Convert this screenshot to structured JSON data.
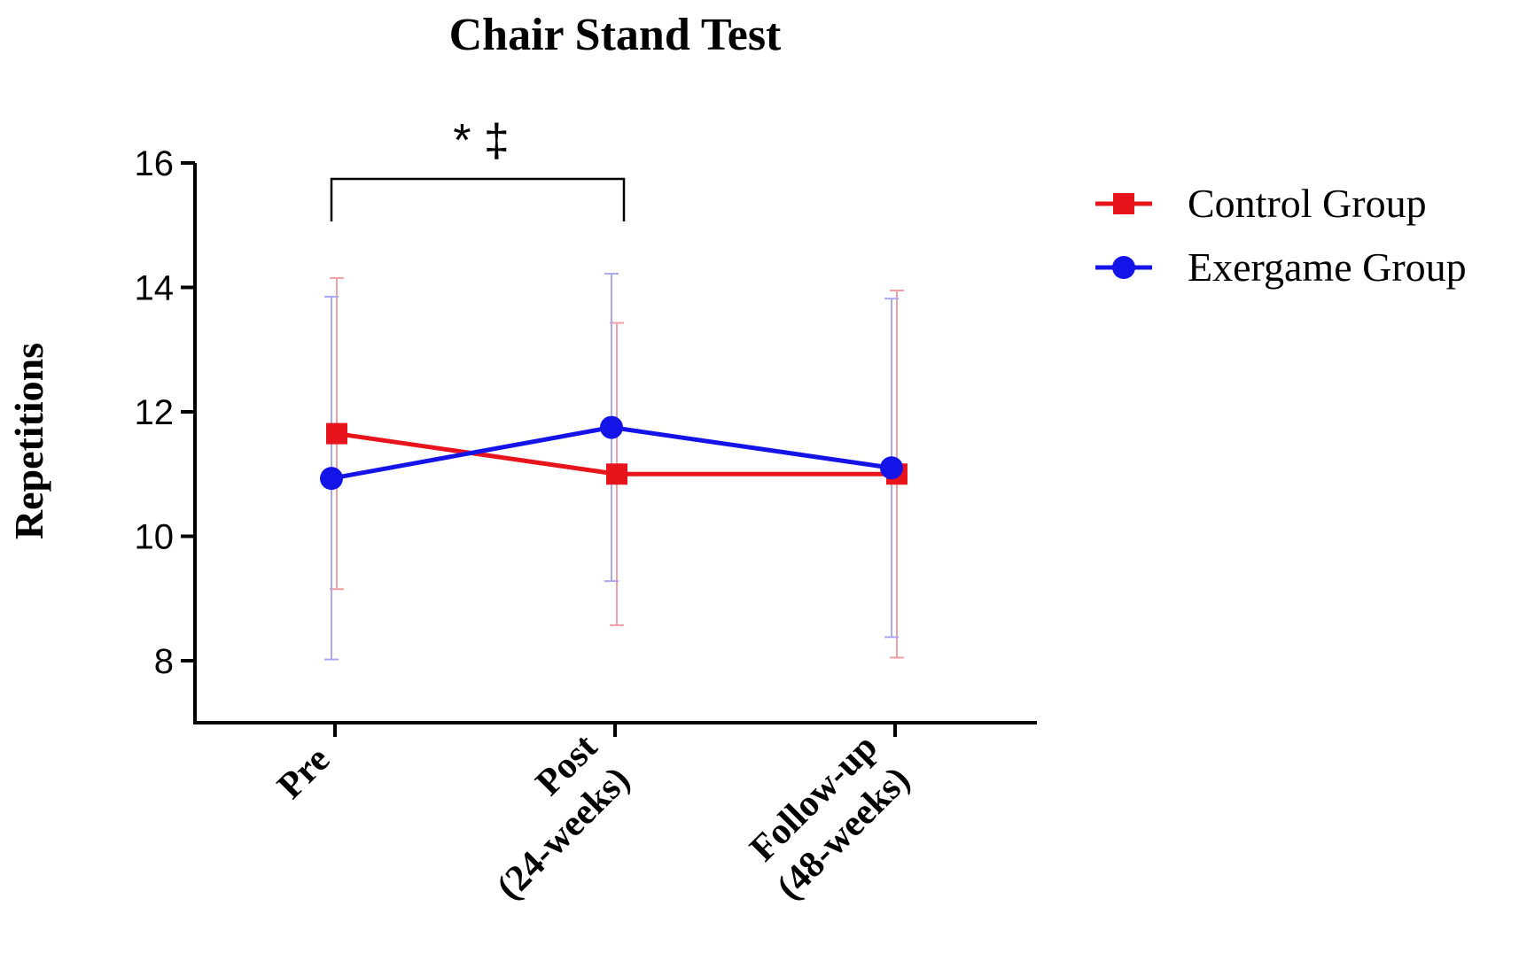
{
  "chart_data": {
    "type": "line",
    "title": "Chair Stand Test",
    "ylabel": "Repetitions",
    "xlabel": "",
    "ylim": [
      7,
      16
    ],
    "yticks": [
      8,
      10,
      12,
      14,
      16
    ],
    "categories": [
      [
        "Pre"
      ],
      [
        "Post",
        "(24-weeks)"
      ],
      [
        "Follow-up",
        "(48-weeks)"
      ]
    ],
    "legend_position": "top-right",
    "grid": false,
    "series": [
      {
        "name": "Control Group",
        "color": "#e8141b",
        "marker": "square",
        "values": [
          11.65,
          11.0,
          11.0
        ],
        "error_low": [
          9.15,
          8.57,
          8.05
        ],
        "error_high": [
          14.15,
          13.43,
          13.95
        ]
      },
      {
        "name": "Exergame Group",
        "color": "#1414e8",
        "marker": "circle",
        "values": [
          10.93,
          11.75,
          11.1
        ],
        "error_low": [
          8.02,
          9.28,
          8.38
        ],
        "error_high": [
          13.85,
          14.22,
          13.82
        ]
      }
    ],
    "annotations": [
      {
        "text": "* ‡",
        "from_category": 0,
        "to_category": 1
      }
    ]
  }
}
